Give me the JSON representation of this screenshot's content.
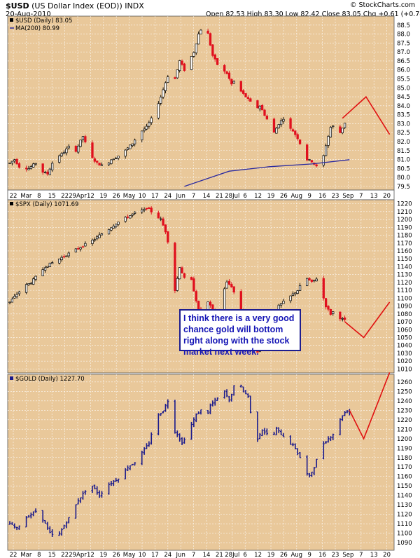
{
  "header": {
    "title": "$USD",
    "subtitle": "(US Dollar Index (EOD))",
    "exchange": "INDX",
    "date": "20-Aug-2010",
    "ohlc": "Open 82.53  High 83.30  Low 82.42  Close 83.05  Chg +0.61 (+0.74%)",
    "change_arrow": "▲",
    "source": "© StockCharts.com"
  },
  "annotation": "I think there is a very good chance gold will bottom right along with the stock market next week.",
  "colors": {
    "panel_bg": "#e9c89a",
    "up": "#000000",
    "down": "#e0101e",
    "gold": "#1a1a8c",
    "ma": "#2a2aa0",
    "projection": "#e01010",
    "accent": "#1d1d8f"
  },
  "x_axis": {
    "labels": [
      "22",
      "Mar",
      "8",
      "15",
      "22",
      "29Apr",
      "12",
      "19",
      "26",
      "May",
      "10",
      "17",
      "24",
      "Jun",
      "7",
      "14",
      "21",
      "28Jul",
      "6",
      "12",
      "19",
      "26",
      "Aug",
      "9",
      "16",
      "23",
      "Sep",
      "7",
      "13",
      "20"
    ]
  },
  "chart_data": [
    {
      "type": "candlestick",
      "title": "$USD (Daily) 83.05",
      "legend": "MA(200) 80.99",
      "ylim": [
        79.3,
        89.0
      ],
      "yticks": [
        "79.5",
        "80.0",
        "80.5",
        "81.0",
        "81.5",
        "82.0",
        "82.5",
        "83.0",
        "83.5",
        "84.0",
        "84.5",
        "85.0",
        "85.5",
        "86.0",
        "86.5",
        "87.0",
        "87.5",
        "88.0",
        "88.5"
      ],
      "anchors": [
        [
          0,
          80.8
        ],
        [
          2,
          81.0
        ],
        [
          4,
          80.6
        ],
        [
          8,
          80.5
        ],
        [
          12,
          80.9
        ],
        [
          14,
          80.3
        ],
        [
          16,
          80.2
        ],
        [
          19,
          81.1
        ],
        [
          22,
          81.3
        ],
        [
          25,
          81.7
        ],
        [
          28,
          81.5
        ],
        [
          31,
          82.3
        ],
        [
          34,
          81.2
        ],
        [
          37,
          80.8
        ],
        [
          40,
          80.6
        ],
        [
          43,
          81.0
        ],
        [
          46,
          81.2
        ],
        [
          49,
          81.5
        ],
        [
          52,
          81.9
        ],
        [
          55,
          82.5
        ],
        [
          58,
          82.8
        ],
        [
          61,
          83.5
        ],
        [
          64,
          84.5
        ],
        [
          66,
          85.3
        ],
        [
          68,
          86.0
        ],
        [
          70,
          85.5
        ],
        [
          72,
          86.5
        ],
        [
          74,
          86.0
        ],
        [
          76,
          86.5
        ],
        [
          78,
          87.0
        ],
        [
          80,
          88.0
        ],
        [
          82,
          88.5
        ],
        [
          84,
          88.0
        ],
        [
          86,
          86.8
        ],
        [
          88,
          86.3
        ],
        [
          90,
          86.0
        ],
        [
          92,
          85.8
        ],
        [
          94,
          85.2
        ],
        [
          96,
          85.5
        ],
        [
          98,
          84.8
        ],
        [
          100,
          84.5
        ],
        [
          102,
          84.2
        ],
        [
          104,
          83.8
        ],
        [
          106,
          84.0
        ],
        [
          108,
          83.5
        ],
        [
          110,
          83.0
        ],
        [
          112,
          82.5
        ],
        [
          114,
          83.0
        ],
        [
          116,
          83.3
        ],
        [
          118,
          82.8
        ],
        [
          120,
          82.6
        ],
        [
          122,
          82.2
        ],
        [
          124,
          81.6
        ],
        [
          126,
          81.0
        ],
        [
          128,
          80.9
        ],
        [
          130,
          80.6
        ],
        [
          132,
          80.6
        ],
        [
          134,
          81.8
        ],
        [
          136,
          82.8
        ],
        [
          138,
          82.9
        ],
        [
          140,
          82.5
        ],
        [
          142,
          83.05
        ]
      ],
      "ma200": [
        [
          74,
          79.5
        ],
        [
          93,
          80.35
        ],
        [
          110,
          80.6
        ],
        [
          128,
          80.75
        ],
        [
          144,
          80.99
        ]
      ],
      "projection": [
        [
          141,
          83.3
        ],
        [
          151,
          84.5
        ],
        [
          161,
          82.4
        ]
      ]
    },
    {
      "type": "candlestick",
      "title": "$SPX (Daily) 1071.69",
      "ylim": [
        1005,
        1225
      ],
      "yticks": [
        "1010",
        "1020",
        "1030",
        "1040",
        "1050",
        "1060",
        "1070",
        "1080",
        "1090",
        "1100",
        "1110",
        "1120",
        "1130",
        "1140",
        "1150",
        "1160",
        "1170",
        "1180",
        "1190",
        "1200",
        "1210",
        "1220"
      ],
      "anchors": [
        [
          0,
          1095
        ],
        [
          3,
          1105
        ],
        [
          6,
          1115
        ],
        [
          9,
          1120
        ],
        [
          12,
          1130
        ],
        [
          15,
          1140
        ],
        [
          18,
          1145
        ],
        [
          21,
          1150
        ],
        [
          24,
          1155
        ],
        [
          27,
          1160
        ],
        [
          30,
          1165
        ],
        [
          33,
          1170
        ],
        [
          36,
          1175
        ],
        [
          39,
          1182
        ],
        [
          42,
          1188
        ],
        [
          45,
          1195
        ],
        [
          48,
          1200
        ],
        [
          51,
          1205
        ],
        [
          54,
          1210
        ],
        [
          57,
          1212
        ],
        [
          58,
          1215
        ],
        [
          60,
          1210
        ],
        [
          62,
          1205
        ],
        [
          64,
          1200
        ],
        [
          66,
          1185
        ],
        [
          68,
          1160
        ],
        [
          70,
          1110
        ],
        [
          72,
          1140
        ],
        [
          74,
          1125
        ],
        [
          76,
          1135
        ],
        [
          78,
          1110
        ],
        [
          80,
          1085
        ],
        [
          82,
          1070
        ],
        [
          84,
          1095
        ],
        [
          86,
          1085
        ],
        [
          88,
          1075
        ],
        [
          90,
          1105
        ],
        [
          92,
          1120
        ],
        [
          94,
          1115
        ],
        [
          96,
          1100
        ],
        [
          98,
          1085
        ],
        [
          100,
          1075
        ],
        [
          102,
          1040
        ],
        [
          104,
          1025
        ],
        [
          106,
          1040
        ],
        [
          108,
          1060
        ],
        [
          110,
          1070
        ],
        [
          112,
          1080
        ],
        [
          114,
          1090
        ],
        [
          116,
          1095
        ],
        [
          118,
          1100
        ],
        [
          120,
          1105
        ],
        [
          122,
          1110
        ],
        [
          124,
          1120
        ],
        [
          126,
          1125
        ],
        [
          128,
          1120
        ],
        [
          130,
          1125
        ],
        [
          132,
          1110
        ],
        [
          134,
          1090
        ],
        [
          136,
          1080
        ],
        [
          138,
          1085
        ],
        [
          140,
          1075
        ],
        [
          142,
          1071.69
        ]
      ],
      "projection": [
        [
          142,
          1070
        ],
        [
          150,
          1050
        ],
        [
          161,
          1095
        ]
      ]
    },
    {
      "type": "ohlc",
      "title": "$GOLD (Daily) 1227.70",
      "ylim": [
        1082,
        1268
      ],
      "yticks": [
        "1090",
        "1100",
        "1110",
        "1120",
        "1130",
        "1140",
        "1150",
        "1160",
        "1170",
        "1180",
        "1190",
        "1200",
        "1210",
        "1220",
        "1230",
        "1240",
        "1250",
        "1260"
      ],
      "anchors": [
        [
          0,
          1110
        ],
        [
          3,
          1105
        ],
        [
          6,
          1115
        ],
        [
          9,
          1120
        ],
        [
          12,
          1125
        ],
        [
          15,
          1110
        ],
        [
          17,
          1100
        ],
        [
          20,
          1095
        ],
        [
          23,
          1108
        ],
        [
          26,
          1120
        ],
        [
          29,
          1135
        ],
        [
          32,
          1145
        ],
        [
          35,
          1150
        ],
        [
          38,
          1140
        ],
        [
          41,
          1150
        ],
        [
          44,
          1155
        ],
        [
          47,
          1160
        ],
        [
          50,
          1170
        ],
        [
          53,
          1175
        ],
        [
          56,
          1185
        ],
        [
          59,
          1195
        ],
        [
          61,
          1215
        ],
        [
          63,
          1225
        ],
        [
          65,
          1230
        ],
        [
          67,
          1240
        ],
        [
          69,
          1210
        ],
        [
          71,
          1205
        ],
        [
          73,
          1195
        ],
        [
          75,
          1205
        ],
        [
          77,
          1215
        ],
        [
          79,
          1225
        ],
        [
          81,
          1230
        ],
        [
          83,
          1220
        ],
        [
          85,
          1235
        ],
        [
          87,
          1240
        ],
        [
          89,
          1245
        ],
        [
          91,
          1250
        ],
        [
          93,
          1240
        ],
        [
          95,
          1255
        ],
        [
          97,
          1260
        ],
        [
          99,
          1250
        ],
        [
          101,
          1245
        ],
        [
          103,
          1210
        ],
        [
          105,
          1200
        ],
        [
          107,
          1210
        ],
        [
          109,
          1205
        ],
        [
          111,
          1200
        ],
        [
          113,
          1210
        ],
        [
          115,
          1205
        ],
        [
          117,
          1200
        ],
        [
          119,
          1195
        ],
        [
          121,
          1190
        ],
        [
          123,
          1180
        ],
        [
          125,
          1165
        ],
        [
          127,
          1160
        ],
        [
          129,
          1170
        ],
        [
          131,
          1185
        ],
        [
          133,
          1195
        ],
        [
          135,
          1200
        ],
        [
          137,
          1205
        ],
        [
          139,
          1215
        ],
        [
          141,
          1225
        ],
        [
          143,
          1230
        ],
        [
          144,
          1227.7
        ]
      ],
      "projection": [
        [
          144,
          1230
        ],
        [
          150,
          1200
        ],
        [
          161,
          1270
        ]
      ]
    }
  ]
}
